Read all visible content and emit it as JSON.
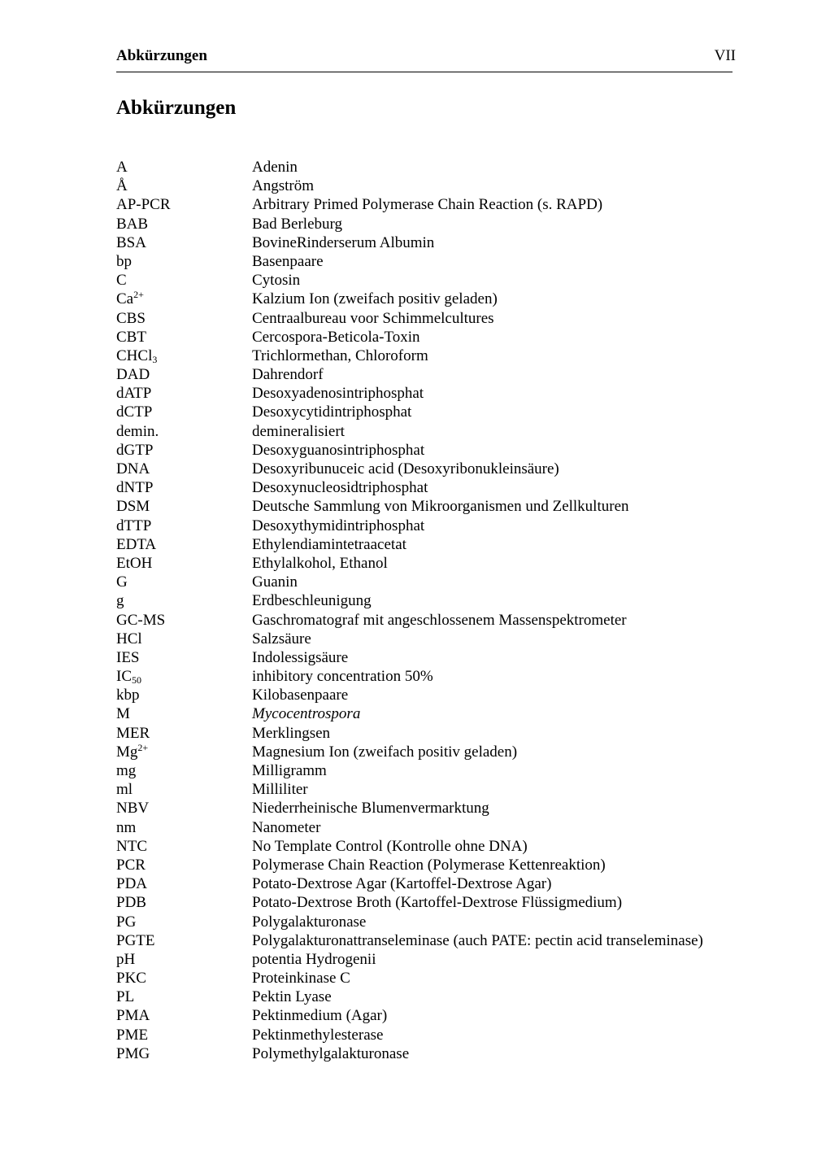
{
  "header": {
    "running_title": "Abkürzungen",
    "page_number": "VII"
  },
  "title": "Abkürzungen",
  "entries": [
    {
      "abbr": "A",
      "def": "Adenin"
    },
    {
      "abbr": "Å",
      "def": "Angström"
    },
    {
      "abbr": "AP-PCR",
      "def": "Arbitrary Primed Polymerase Chain Reaction (s. RAPD)"
    },
    {
      "abbr": "BAB",
      "def": "Bad Berleburg"
    },
    {
      "abbr": "BSA",
      "def": "BovineRinderserum Albumin"
    },
    {
      "abbr": "bp",
      "def": "Basenpaare"
    },
    {
      "abbr": "C",
      "def": "Cytosin"
    },
    {
      "abbr": "Ca",
      "sup": "2+",
      "def": "Kalzium Ion (zweifach positiv geladen)"
    },
    {
      "abbr": "CBS",
      "def": "Centraalbureau voor Schimmelcultures"
    },
    {
      "abbr": "CBT",
      "def": "Cercospora-Beticola-Toxin"
    },
    {
      "abbr": "CHCl",
      "sub": "3",
      "def": "Trichlormethan, Chloroform"
    },
    {
      "abbr": "DAD",
      "def": "Dahrendorf"
    },
    {
      "abbr": "dATP",
      "def": "Desoxyadenosintriphosphat"
    },
    {
      "abbr": "dCTP",
      "def": "Desoxycytidintriphosphat"
    },
    {
      "abbr": "demin.",
      "def": "demineralisiert"
    },
    {
      "abbr": "dGTP",
      "def": "Desoxyguanosintriphosphat"
    },
    {
      "abbr": "DNA",
      "def": "Desoxyribunuceic acid (Desoxyribonukleinsäure)"
    },
    {
      "abbr": "dNTP",
      "def": "Desoxynucleosidtriphosphat"
    },
    {
      "abbr": "DSM",
      "def": "Deutsche Sammlung von Mikroorganismen und Zellkulturen"
    },
    {
      "abbr": "dTTP",
      "def": "Desoxythymidintriphosphat"
    },
    {
      "abbr": "EDTA",
      "def": "Ethylendiamintetraacetat"
    },
    {
      "abbr": "EtOH",
      "def": "Ethylalkohol, Ethanol"
    },
    {
      "abbr": "G",
      "def": "Guanin"
    },
    {
      "abbr": "g",
      "def": "Erdbeschleunigung"
    },
    {
      "abbr": "GC-MS",
      "def": "Gaschromatograf mit angeschlossenem Massenspektrometer"
    },
    {
      "abbr": "HCl",
      "def": "Salzsäure"
    },
    {
      "abbr": "IES",
      "def": "Indolessigsäure"
    },
    {
      "abbr": "IC",
      "sub": "50",
      "def": "inhibitory concentration 50%"
    },
    {
      "abbr": "kbp",
      "def": "Kilobasenpaare"
    },
    {
      "abbr": "M",
      "def": "Mycocentrospora",
      "italic": true
    },
    {
      "abbr": "MER",
      "def": "Merklingsen"
    },
    {
      "abbr": "Mg",
      "sup": "2+",
      "def": "Magnesium Ion (zweifach positiv geladen)"
    },
    {
      "abbr": "mg",
      "def": "Milligramm"
    },
    {
      "abbr": "ml",
      "def": "Milliliter"
    },
    {
      "abbr": "NBV",
      "def": "Niederrheinische Blumenvermarktung"
    },
    {
      "abbr": "nm",
      "def": "Nanometer"
    },
    {
      "abbr": "NTC",
      "def": "No Template Control (Kontrolle ohne DNA)"
    },
    {
      "abbr": "PCR",
      "def": "Polymerase Chain Reaction (Polymerase Kettenreaktion)"
    },
    {
      "abbr": "PDA",
      "def": "Potato-Dextrose Agar (Kartoffel-Dextrose Agar)"
    },
    {
      "abbr": "PDB",
      "def": "Potato-Dextrose Broth (Kartoffel-Dextrose Flüssigmedium)"
    },
    {
      "abbr": "PG",
      "def": "Polygalakturonase"
    },
    {
      "abbr": "PGTE",
      "def": "Polygalakturonattranseleminase (auch PATE: pectin acid transeleminase)"
    },
    {
      "abbr": "pH",
      "def": "potentia Hydrogenii"
    },
    {
      "abbr": "PKC",
      "def": "Proteinkinase C"
    },
    {
      "abbr": "PL",
      "def": "Pektin Lyase"
    },
    {
      "abbr": "PMA",
      "def": "Pektinmedium (Agar)"
    },
    {
      "abbr": "PME",
      "def": "Pektinmethylesterase"
    },
    {
      "abbr": "PMG",
      "def": "Polymethylgalakturonase"
    }
  ]
}
